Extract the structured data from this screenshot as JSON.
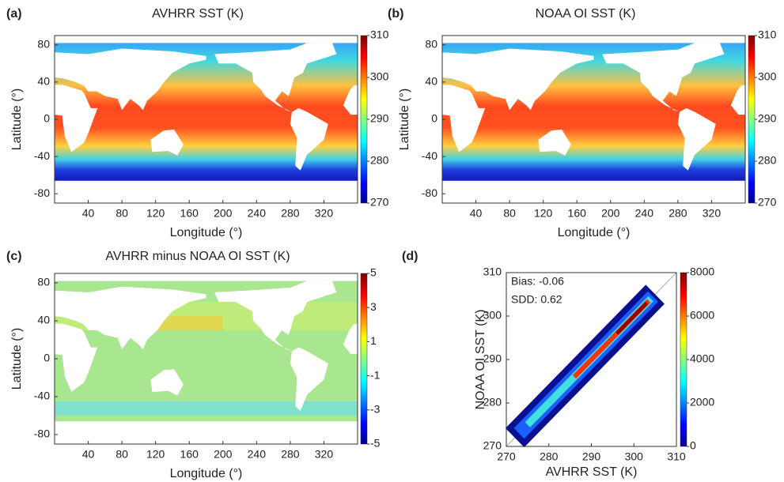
{
  "chart_data": [
    {
      "type": "map",
      "panel": "(a)",
      "title": "AVHRR SST (K)",
      "xlabel": "Longitude (°)",
      "ylabel": "Latitude (°)",
      "xlim": [
        0,
        360
      ],
      "ylim": [
        -90,
        90
      ],
      "xticks": [
        40,
        80,
        120,
        160,
        200,
        240,
        280,
        320
      ],
      "yticks": [
        80,
        40,
        0,
        -40,
        -80
      ],
      "clim": [
        270,
        310
      ],
      "cticks": [
        270,
        280,
        290,
        300,
        310
      ],
      "colormap": "jet"
    },
    {
      "type": "map",
      "panel": "(b)",
      "title": "NOAA OI SST (K)",
      "xlabel": "Longitude (°)",
      "ylabel": "Latitude (°)",
      "xlim": [
        0,
        360
      ],
      "ylim": [
        -90,
        90
      ],
      "xticks": [
        40,
        80,
        120,
        160,
        200,
        240,
        280,
        320
      ],
      "yticks": [
        80,
        40,
        0,
        -40,
        -80
      ],
      "clim": [
        270,
        310
      ],
      "cticks": [
        270,
        280,
        290,
        300,
        310
      ],
      "colormap": "jet"
    },
    {
      "type": "map",
      "panel": "(c)",
      "title": "AVHRR minus NOAA OI SST (K)",
      "xlabel": "Longitude (°)",
      "ylabel": "Latitude (°)",
      "xlim": [
        0,
        360
      ],
      "ylim": [
        -90,
        90
      ],
      "xticks": [
        40,
        80,
        120,
        160,
        200,
        240,
        280,
        320
      ],
      "yticks": [
        80,
        40,
        0,
        -40,
        -80
      ],
      "clim": [
        -5,
        5
      ],
      "cticks": [
        5,
        3,
        1,
        -1,
        -3,
        -5
      ],
      "colormap": "jet",
      "difference": true
    },
    {
      "type": "density",
      "panel": "(d)",
      "xlabel": "AVHRR SST (K)",
      "ylabel": "NOAA OI SST (K)",
      "xlim": [
        270,
        310
      ],
      "ylim": [
        270,
        310
      ],
      "xticks": [
        270,
        280,
        290,
        300,
        310
      ],
      "yticks": [
        270,
        280,
        290,
        300,
        310
      ],
      "clim": [
        0,
        8000
      ],
      "cticks": [
        0,
        2000,
        4000,
        6000,
        8000
      ],
      "colormap": "jet",
      "annotations": [
        "Bias: -0.06",
        "SDD: 0.62"
      ]
    }
  ]
}
